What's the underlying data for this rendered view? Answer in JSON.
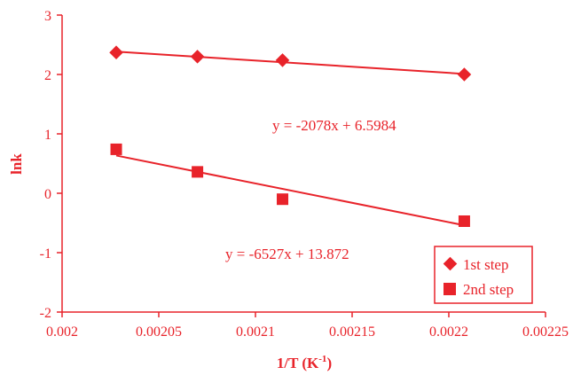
{
  "colors": {
    "accent": "#e8232a",
    "background": "#ffffff"
  },
  "chart_data": {
    "type": "scatter",
    "xlabel": "1/T (K",
    "xlabel_sup": "-1",
    "xlabel_close": ")",
    "ylabel": "lnk",
    "xlim": [
      0.002,
      0.00225
    ],
    "ylim": [
      -2,
      3
    ],
    "x_ticks": [
      "0.002",
      "0.00205",
      "0.0021",
      "0.00215",
      "0.0022",
      "0.00225"
    ],
    "y_ticks": [
      "-2",
      "-1",
      "0",
      "1",
      "2",
      "3"
    ],
    "grid": false,
    "legend_position": "bottom-right",
    "series": [
      {
        "name": "1st step",
        "marker": "diamond",
        "x": [
          0.002028,
          0.00207,
          0.002114,
          0.002208
        ],
        "y": [
          2.37,
          2.3,
          2.24,
          2.0
        ],
        "trendline": {
          "slope": -2078,
          "intercept": 6.5984
        },
        "equation": "y = -2078x + 6.5984"
      },
      {
        "name": "2nd step",
        "marker": "square",
        "x": [
          0.002028,
          0.00207,
          0.002114,
          0.002208
        ],
        "y": [
          0.74,
          0.36,
          -0.1,
          -0.47
        ],
        "trendline": {
          "slope": -6527,
          "intercept": 13.872
        },
        "equation": "y = -6527x + 13.872"
      }
    ]
  }
}
